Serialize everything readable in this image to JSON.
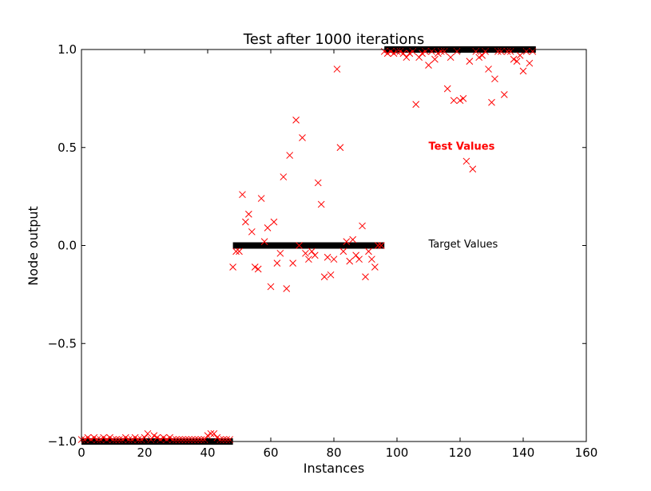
{
  "chart_data": {
    "type": "scatter",
    "title": "Test after 1000 iterations",
    "xlabel": "Instances",
    "ylabel": "Node output",
    "xlim": [
      0,
      160
    ],
    "ylim": [
      -1.0,
      1.0
    ],
    "x_ticks": [
      0,
      20,
      40,
      60,
      80,
      100,
      120,
      140,
      160
    ],
    "x_tick_labels": [
      "0",
      "20",
      "40",
      "60",
      "80",
      "100",
      "120",
      "140",
      "160"
    ],
    "y_ticks": [
      -1.0,
      -0.5,
      0.0,
      0.5,
      1.0
    ],
    "y_tick_labels": [
      "−1.0",
      "−0.5",
      "0.0",
      "0.5",
      "1.0"
    ],
    "grid": false,
    "annotations": [
      {
        "text": "Test Values",
        "x": 110,
        "y": 0.51,
        "color": "#ff0000",
        "bold": true
      },
      {
        "text": "Target Values",
        "x": 110,
        "y": 0.01,
        "color": "#000000",
        "bold": false
      }
    ],
    "series": [
      {
        "role": "target",
        "color": "#000000",
        "segments": [
          {
            "x": [
              0,
              48
            ],
            "y": -1.0
          },
          {
            "x": [
              48,
              96
            ],
            "y": 0.0
          },
          {
            "x": [
              96,
              144
            ],
            "y": 1.0
          }
        ]
      },
      {
        "role": "test",
        "marker": "x",
        "color": "#ff0000",
        "points": [
          [
            0,
            -0.99
          ],
          [
            1,
            -0.99
          ],
          [
            2,
            -0.98
          ],
          [
            3,
            -0.99
          ],
          [
            4,
            -0.98
          ],
          [
            5,
            -0.99
          ],
          [
            6,
            -0.99
          ],
          [
            7,
            -0.98
          ],
          [
            8,
            -0.99
          ],
          [
            9,
            -0.98
          ],
          [
            10,
            -0.99
          ],
          [
            11,
            -0.99
          ],
          [
            12,
            -0.99
          ],
          [
            13,
            -0.99
          ],
          [
            14,
            -0.98
          ],
          [
            15,
            -0.99
          ],
          [
            16,
            -0.99
          ],
          [
            17,
            -0.98
          ],
          [
            18,
            -0.99
          ],
          [
            19,
            -0.99
          ],
          [
            20,
            -0.98
          ],
          [
            21,
            -0.96
          ],
          [
            22,
            -0.99
          ],
          [
            23,
            -0.97
          ],
          [
            24,
            -0.98
          ],
          [
            25,
            -0.99
          ],
          [
            26,
            -0.98
          ],
          [
            27,
            -0.99
          ],
          [
            28,
            -0.98
          ],
          [
            29,
            -0.99
          ],
          [
            30,
            -0.99
          ],
          [
            31,
            -0.99
          ],
          [
            32,
            -0.99
          ],
          [
            33,
            -0.99
          ],
          [
            34,
            -0.99
          ],
          [
            35,
            -0.99
          ],
          [
            36,
            -0.99
          ],
          [
            37,
            -0.99
          ],
          [
            38,
            -0.99
          ],
          [
            39,
            -0.99
          ],
          [
            40,
            -0.97
          ],
          [
            41,
            -0.96
          ],
          [
            42,
            -0.96
          ],
          [
            43,
            -0.98
          ],
          [
            44,
            -0.99
          ],
          [
            45,
            -0.99
          ],
          [
            46,
            -0.99
          ],
          [
            47,
            -0.99
          ],
          [
            48,
            -0.11
          ],
          [
            49,
            -0.03
          ],
          [
            50,
            -0.03
          ],
          [
            51,
            0.26
          ],
          [
            52,
            0.12
          ],
          [
            53,
            0.16
          ],
          [
            54,
            0.07
          ],
          [
            55,
            -0.11
          ],
          [
            56,
            -0.12
          ],
          [
            57,
            0.24
          ],
          [
            58,
            0.02
          ],
          [
            59,
            0.09
          ],
          [
            60,
            -0.21
          ],
          [
            61,
            0.12
          ],
          [
            62,
            -0.09
          ],
          [
            63,
            -0.04
          ],
          [
            64,
            0.35
          ],
          [
            65,
            -0.22
          ],
          [
            66,
            0.46
          ],
          [
            67,
            -0.09
          ],
          [
            68,
            0.64
          ],
          [
            69,
            0.0
          ],
          [
            70,
            0.55
          ],
          [
            71,
            -0.04
          ],
          [
            72,
            -0.07
          ],
          [
            73,
            -0.03
          ],
          [
            74,
            -0.05
          ],
          [
            75,
            0.32
          ],
          [
            76,
            0.21
          ],
          [
            77,
            -0.16
          ],
          [
            78,
            -0.06
          ],
          [
            79,
            -0.15
          ],
          [
            80,
            -0.07
          ],
          [
            81,
            0.9
          ],
          [
            82,
            0.5
          ],
          [
            83,
            -0.03
          ],
          [
            84,
            0.02
          ],
          [
            85,
            -0.08
          ],
          [
            86,
            0.03
          ],
          [
            87,
            -0.05
          ],
          [
            88,
            -0.07
          ],
          [
            89,
            0.1
          ],
          [
            90,
            -0.16
          ],
          [
            91,
            -0.03
          ],
          [
            92,
            -0.07
          ],
          [
            93,
            -0.11
          ],
          [
            94,
            0.0
          ],
          [
            95,
            0.0
          ],
          [
            96,
            0.99
          ],
          [
            97,
            0.98
          ],
          [
            98,
            0.99
          ],
          [
            99,
            0.98
          ],
          [
            100,
            0.99
          ],
          [
            101,
            0.99
          ],
          [
            102,
            0.98
          ],
          [
            103,
            0.96
          ],
          [
            104,
            0.98
          ],
          [
            105,
            0.99
          ],
          [
            106,
            0.72
          ],
          [
            107,
            0.96
          ],
          [
            108,
            0.98
          ],
          [
            109,
            0.99
          ],
          [
            110,
            0.92
          ],
          [
            111,
            0.99
          ],
          [
            112,
            0.95
          ],
          [
            113,
            0.98
          ],
          [
            114,
            0.99
          ],
          [
            115,
            0.99
          ],
          [
            116,
            0.8
          ],
          [
            117,
            0.96
          ],
          [
            118,
            0.74
          ],
          [
            119,
            0.99
          ],
          [
            120,
            0.74
          ],
          [
            121,
            0.75
          ],
          [
            122,
            0.43
          ],
          [
            123,
            0.94
          ],
          [
            124,
            0.39
          ],
          [
            125,
            0.99
          ],
          [
            126,
            0.96
          ],
          [
            127,
            0.97
          ],
          [
            128,
            0.99
          ],
          [
            129,
            0.9
          ],
          [
            130,
            0.73
          ],
          [
            131,
            0.85
          ],
          [
            132,
            0.99
          ],
          [
            133,
            0.99
          ],
          [
            134,
            0.77
          ],
          [
            135,
            0.99
          ],
          [
            136,
            0.99
          ],
          [
            137,
            0.95
          ],
          [
            138,
            0.94
          ],
          [
            139,
            0.97
          ],
          [
            140,
            0.89
          ],
          [
            141,
            0.99
          ],
          [
            142,
            0.93
          ],
          [
            143,
            0.99
          ]
        ]
      }
    ]
  }
}
